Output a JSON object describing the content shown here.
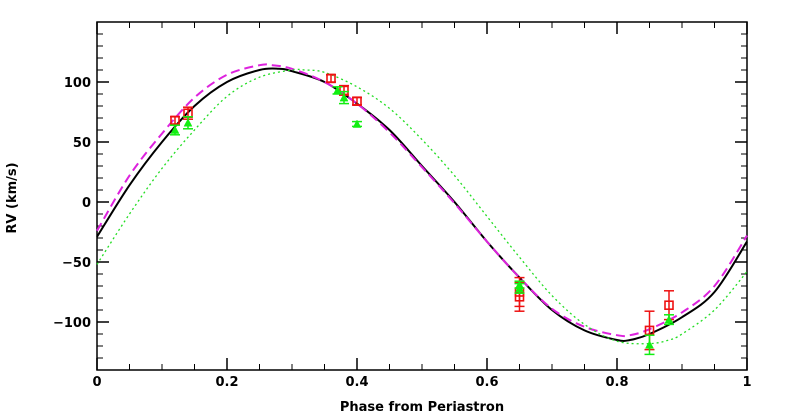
{
  "chart_data": {
    "type": "line",
    "title": "",
    "xlabel": "Phase from Periastron",
    "ylabel": "RV (km/s)",
    "xlim": [
      0,
      1
    ],
    "ylim": [
      -140,
      150
    ],
    "x_ticks": [
      0,
      0.2,
      0.4,
      0.6,
      0.8,
      1
    ],
    "x_tick_labels": [
      "0",
      "0.2",
      "0.4",
      "0.6",
      "0.8",
      "1"
    ],
    "y_ticks": [
      -100,
      -50,
      0,
      50,
      100
    ],
    "y_tick_labels": [
      "−100",
      "−50",
      "0",
      "50",
      "100"
    ],
    "grid": false,
    "series": [
      {
        "style": "solid",
        "color": "#000000",
        "x": [
          0,
          0.05,
          0.1,
          0.15,
          0.2,
          0.25,
          0.28,
          0.3,
          0.35,
          0.4,
          0.45,
          0.5,
          0.55,
          0.6,
          0.65,
          0.7,
          0.75,
          0.8,
          0.82,
          0.85,
          0.9,
          0.95,
          1.0
        ],
        "y": [
          -29,
          14,
          50,
          80,
          100,
          110,
          111,
          109,
          100,
          82,
          60,
          30,
          0,
          -33,
          -63,
          -90,
          -107,
          -115,
          -115,
          -110,
          -96,
          -75,
          -33
        ]
      },
      {
        "style": "dashed",
        "color": "#dd22dd",
        "x": [
          0,
          0.05,
          0.1,
          0.15,
          0.2,
          0.25,
          0.27,
          0.3,
          0.35,
          0.4,
          0.45,
          0.5,
          0.55,
          0.6,
          0.65,
          0.7,
          0.75,
          0.8,
          0.82,
          0.85,
          0.9,
          0.95,
          1.0
        ],
        "y": [
          -24,
          22,
          57,
          87,
          106,
          114,
          114,
          111,
          100,
          82,
          58,
          29,
          -1,
          -33,
          -63,
          -89,
          -104,
          -111,
          -111,
          -106,
          -92,
          -70,
          -28
        ]
      },
      {
        "style": "dotted",
        "color": "#22dd22",
        "x": [
          0,
          0.05,
          0.1,
          0.15,
          0.2,
          0.25,
          0.3,
          0.32,
          0.35,
          0.4,
          0.45,
          0.5,
          0.55,
          0.6,
          0.65,
          0.7,
          0.75,
          0.8,
          0.85,
          0.88,
          0.9,
          0.95,
          1.0
        ],
        "y": [
          -52,
          -10,
          28,
          60,
          88,
          104,
          110,
          110,
          108,
          96,
          78,
          52,
          22,
          -12,
          -46,
          -78,
          -102,
          -116,
          -118,
          -115,
          -110,
          -90,
          -58
        ]
      }
    ],
    "data_points": [
      {
        "name": "red-squares",
        "marker": "open-square",
        "color": "#ee1111",
        "x": [
          0.12,
          0.14,
          0.36,
          0.38,
          0.4,
          0.65,
          0.65,
          0.85,
          0.88
        ],
        "y": [
          68,
          74,
          103,
          93,
          84,
          -75,
          -79,
          -107,
          -86
        ],
        "err": [
          3,
          5,
          3,
          4,
          3,
          12,
          12,
          16,
          12
        ]
      },
      {
        "name": "green-triangles",
        "marker": "filled-triangle",
        "color": "#11ee11",
        "x": [
          0.12,
          0.14,
          0.37,
          0.38,
          0.4,
          0.65,
          0.65,
          0.85,
          0.88
        ],
        "y": [
          60,
          66,
          93,
          87,
          65,
          -72,
          -69,
          -119,
          -98
        ],
        "err": [
          4,
          5,
          3,
          5,
          2,
          4,
          3,
          8,
          4
        ]
      }
    ]
  }
}
